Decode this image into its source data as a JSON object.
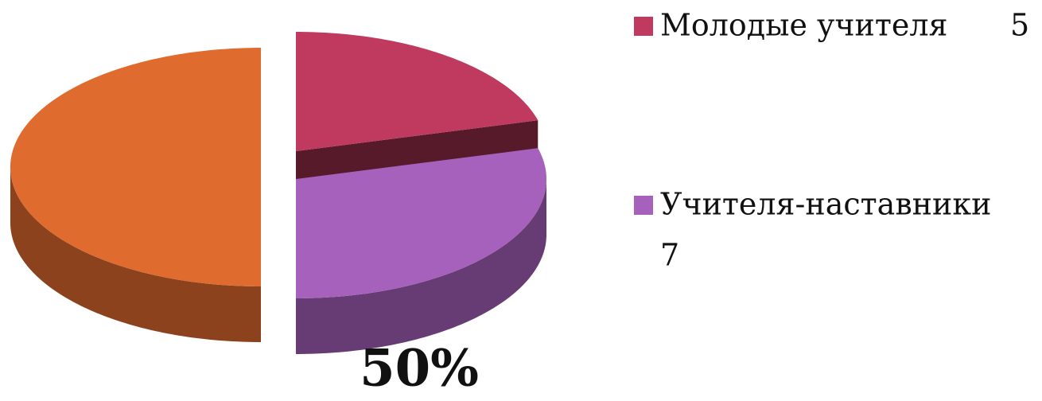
{
  "chart_data": {
    "type": "pie3d",
    "categories": [
      "Молодые учителя",
      "Учителя-наставники",
      null
    ],
    "values": [
      5,
      7,
      12
    ],
    "value_labels": [
      null,
      null,
      "50%"
    ],
    "colors": [
      "#c0395f",
      "#a661bc",
      "#e06b2e"
    ],
    "legend": "right"
  }
}
